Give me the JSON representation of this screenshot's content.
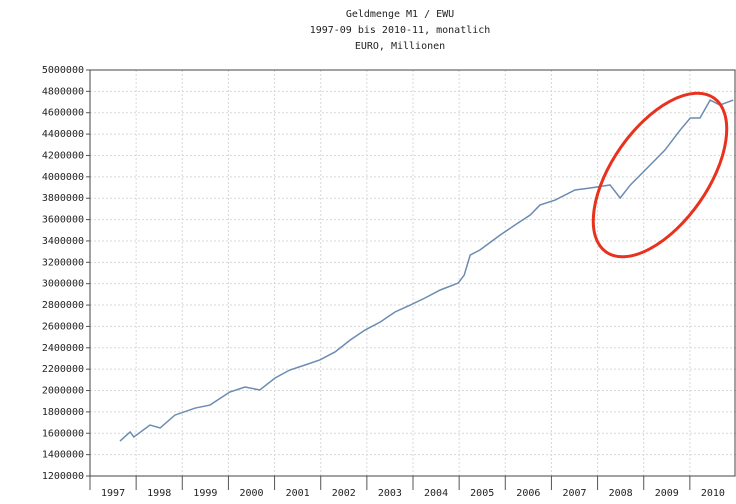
{
  "chart_data": {
    "type": "line",
    "title": "Geldmenge M1 / EWU",
    "subtitle": "1997-09 bis 2010-11, monatlich",
    "y_label": "EURO, Millionen",
    "x": [
      1997.65,
      1997.87,
      1997.95,
      1998.3,
      1998.52,
      1998.84,
      1999.28,
      1999.6,
      2000.03,
      2000.36,
      2000.68,
      2001.01,
      2001.33,
      2001.66,
      2001.98,
      2002.31,
      2002.64,
      2002.96,
      2003.29,
      2003.61,
      2003.94,
      2004.26,
      2004.59,
      2004.98,
      2005.11,
      2005.24,
      2005.45,
      2005.89,
      2006.21,
      2006.54,
      2006.75,
      2007.08,
      2007.51,
      2007.84,
      2008.27,
      2008.49,
      2008.71,
      2009.14,
      2009.46,
      2009.79,
      2010.01,
      2010.22,
      2010.44,
      2010.65,
      2010.94
    ],
    "series": [
      {
        "name": "Geldmenge M1",
        "color": "#6b8cb0",
        "values": [
          1527000,
          1612000,
          1565000,
          1677000,
          1650000,
          1770000,
          1836000,
          1864000,
          1986000,
          2033000,
          2005000,
          2117000,
          2192000,
          2239000,
          2286000,
          2361000,
          2473000,
          2566000,
          2641000,
          2735000,
          2800000,
          2866000,
          2941000,
          3006000,
          3081000,
          3268000,
          3315000,
          3456000,
          3549000,
          3643000,
          3736000,
          3783000,
          3877000,
          3896000,
          3924000,
          3802000,
          3924000,
          4111000,
          4251000,
          4438000,
          4551000,
          4551000,
          4719000,
          4672000,
          4719000
        ]
      }
    ],
    "xlim": [
      1997,
      2011
    ],
    "xticks": [
      1997,
      1998,
      1999,
      2000,
      2001,
      2002,
      2003,
      2004,
      2005,
      2006,
      2007,
      2008,
      2009,
      2010
    ],
    "ylim": [
      1200000,
      5000000
    ],
    "yticks": [
      1200000,
      1400000,
      1600000,
      1800000,
      2000000,
      2200000,
      2400000,
      2600000,
      2800000,
      3000000,
      3200000,
      3400000,
      3600000,
      3800000,
      4000000,
      4200000,
      4400000,
      4600000,
      4800000,
      5000000
    ],
    "grid": true
  }
}
